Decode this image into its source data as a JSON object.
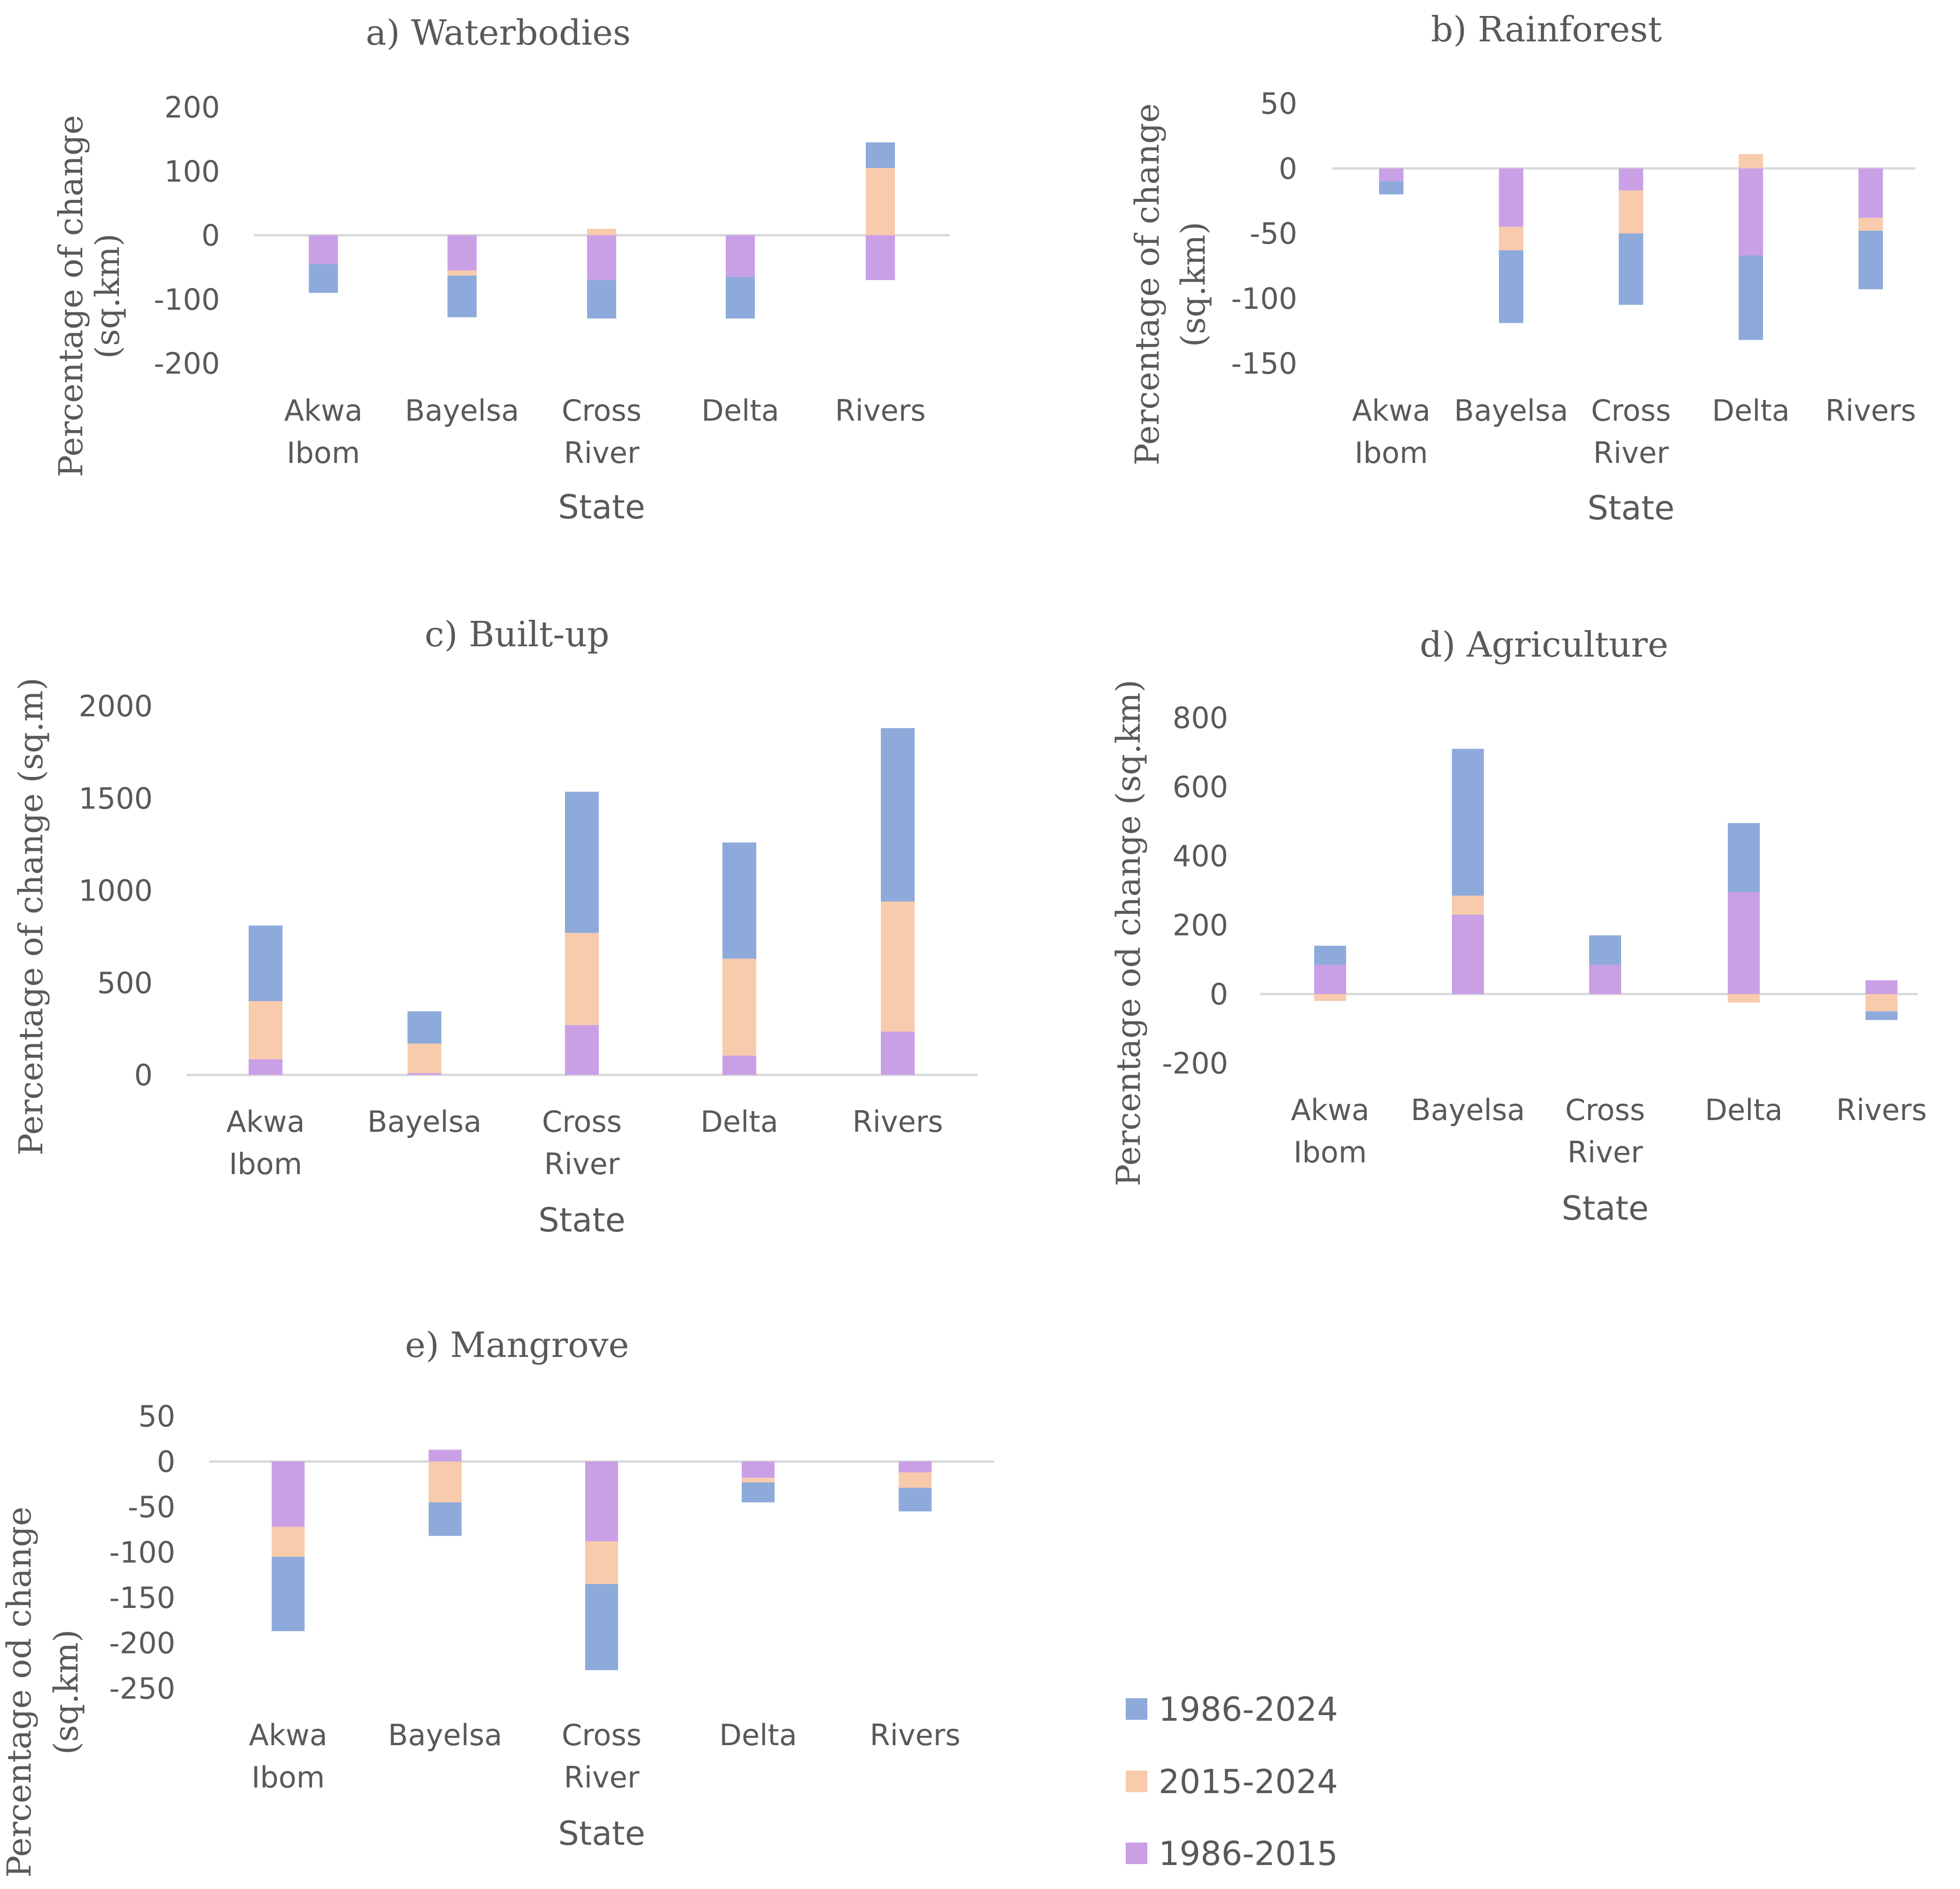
{
  "chart_data": [
    {
      "type": "bar",
      "stacked": true,
      "title": "a) Waterbodies",
      "xlabel": "State",
      "ylabel": "Percentage of change (sq.km)",
      "categories": [
        "Akwa Ibom",
        "Bayelsa",
        "Cross River",
        "Delta",
        "Rivers"
      ],
      "yticks": [
        "200",
        "100",
        "0",
        "-100",
        "-200"
      ],
      "ylim": [
        -200,
        200
      ],
      "series": [
        {
          "name": "1986-2015",
          "values": [
            -45,
            -55,
            -70,
            -65,
            -70
          ]
        },
        {
          "name": "2015-2024",
          "values": [
            0,
            -8,
            10,
            0,
            105
          ]
        },
        {
          "name": "1986-2024",
          "values": [
            -45,
            -65,
            -60,
            -65,
            40
          ]
        }
      ]
    },
    {
      "type": "bar",
      "stacked": true,
      "title": "b) Rainforest",
      "xlabel": "State",
      "ylabel": "Percentage of change (sq.km)",
      "categories": [
        "Akwa Ibom",
        "Bayelsa",
        "Cross River",
        "Delta",
        "Rivers"
      ],
      "yticks": [
        "50",
        "0",
        "-50",
        "-100",
        "-150"
      ],
      "ylim": [
        -150,
        50
      ],
      "series": [
        {
          "name": "1986-2015",
          "values": [
            -10,
            -45,
            -17,
            -67,
            -38
          ]
        },
        {
          "name": "2015-2024",
          "values": [
            0,
            -18,
            -33,
            11,
            -10
          ]
        },
        {
          "name": "1986-2024",
          "values": [
            -10,
            -56,
            -55,
            -65,
            -45
          ]
        }
      ]
    },
    {
      "type": "bar",
      "stacked": true,
      "title": "c) Built-up",
      "xlabel": "State",
      "ylabel": "Percentage of change (sq.m)",
      "categories": [
        "Akwa Ibom",
        "Bayelsa",
        "Cross River",
        "Delta",
        "Rivers"
      ],
      "yticks": [
        "2000",
        "1500",
        "1000",
        "500",
        "0"
      ],
      "ylim": [
        0,
        2000
      ],
      "series": [
        {
          "name": "1986-2015",
          "values": [
            85,
            10,
            270,
            105,
            235
          ]
        },
        {
          "name": "2015-2024",
          "values": [
            315,
            160,
            500,
            525,
            705
          ]
        },
        {
          "name": "1986-2024",
          "values": [
            410,
            175,
            765,
            630,
            940
          ]
        }
      ]
    },
    {
      "type": "bar",
      "stacked": true,
      "title": "d) Agriculture",
      "xlabel": "State",
      "ylabel": "Percentage od change (sq.km)",
      "categories": [
        "Akwa Ibom",
        "Bayelsa",
        "Cross River",
        "Delta",
        "Rivers"
      ],
      "yticks": [
        "800",
        "600",
        "400",
        "200",
        "0",
        "-200"
      ],
      "ylim": [
        -200,
        800
      ],
      "series": [
        {
          "name": "1986-2015",
          "values": [
            85,
            230,
            85,
            295,
            40
          ]
        },
        {
          "name": "2015-2024",
          "values": [
            -20,
            55,
            0,
            -25,
            -50
          ]
        },
        {
          "name": "1986-2024",
          "values": [
            55,
            425,
            85,
            200,
            -25
          ]
        }
      ]
    },
    {
      "type": "bar",
      "stacked": true,
      "title": "e) Mangrove",
      "xlabel": "State",
      "ylabel": "Percentage od change (sq.km)",
      "categories": [
        "Akwa Ibom",
        "Bayelsa",
        "Cross River",
        "Delta",
        "Rivers"
      ],
      "yticks": [
        "50",
        "0",
        "-50",
        "-100",
        "-150",
        "-200",
        "-250"
      ],
      "ylim": [
        -250,
        50
      ],
      "series": [
        {
          "name": "1986-2015",
          "values": [
            -72,
            13,
            -88,
            -18,
            -12
          ]
        },
        {
          "name": "2015-2024",
          "values": [
            -33,
            -45,
            -47,
            -5,
            -17
          ]
        },
        {
          "name": "1986-2024",
          "values": [
            -82,
            -37,
            -95,
            -22,
            -26
          ]
        }
      ]
    }
  ],
  "legend": [
    {
      "label": "1986-2024",
      "color": "#8eaadb"
    },
    {
      "label": "2015-2024",
      "color": "#f8cbad"
    },
    {
      "label": "1986-2015",
      "color": "#c9a0e6"
    }
  ],
  "colors": {
    "1986-2015": "#c9a0e6",
    "1986-2015-dark": "#b98bdc",
    "2015-2024": "#f8cbad",
    "1986-2024": "#8eaadb",
    "axis": "#d9d9d9",
    "text": "#595959"
  }
}
